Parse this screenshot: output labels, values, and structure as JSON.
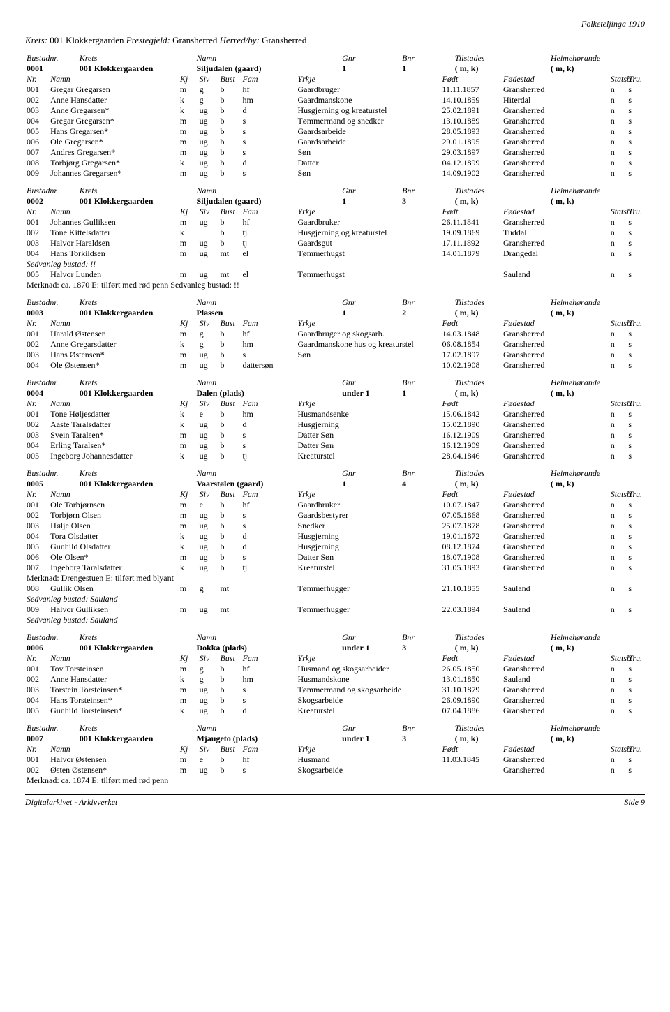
{
  "header_right": "Folketeljinga 1910",
  "krets_line": {
    "krets_label": "Krets:",
    "krets_val": "001 Klokkergaarden",
    "preste_label": "Prestegjeld:",
    "preste_val": "Gransherred",
    "herred_label": "Herred/by:",
    "herred_val": "Gransherred"
  },
  "bustad_headers": [
    "Bustadnr.",
    "Krets",
    "Namn",
    "Gnr",
    "Bnr",
    "Tilstades",
    "Heimehørande"
  ],
  "person_headers": [
    "Nr.",
    "Namn",
    "Kj",
    "Siv",
    "Bust",
    "Fam",
    "Yrkje",
    "Født",
    "Fødestad",
    "Statsb.",
    "Tru."
  ],
  "sections": [
    {
      "bustad": [
        "0001",
        "001 Klokkergaarden",
        "Siljudalen (gaard)",
        "1",
        "1",
        "( m, k)",
        "( m, k)"
      ],
      "persons": [
        [
          "001",
          "Gregar Gregarsen",
          "m",
          "g",
          "b",
          "hf",
          "Gaardbruger",
          "11.11.1857",
          "Gransherred",
          "n",
          "s"
        ],
        [
          "002",
          "Anne Hansdatter",
          "k",
          "g",
          "b",
          "hm",
          "Gaardmanskone",
          "14.10.1859",
          "Hiterdal",
          "n",
          "s"
        ],
        [
          "003",
          "Anne Gregarsen*",
          "k",
          "ug",
          "b",
          "d",
          "Husgjerning og kreaturstel",
          "25.02.1891",
          "Gransherred",
          "n",
          "s"
        ],
        [
          "004",
          "Gregar Gregarsen*",
          "m",
          "ug",
          "b",
          "s",
          "Tømmermand og snedker",
          "13.10.1889",
          "Gransherred",
          "n",
          "s"
        ],
        [
          "005",
          "Hans Gregarsen*",
          "m",
          "ug",
          "b",
          "s",
          "Gaardsarbeide",
          "28.05.1893",
          "Gransherred",
          "n",
          "s"
        ],
        [
          "006",
          "Ole Gregarsen*",
          "m",
          "ug",
          "b",
          "s",
          "Gaardsarbeide",
          "29.01.1895",
          "Gransherred",
          "n",
          "s"
        ],
        [
          "007",
          "Andres Gregarsen*",
          "m",
          "ug",
          "b",
          "s",
          "Søn",
          "29.03.1897",
          "Gransherred",
          "n",
          "s"
        ],
        [
          "008",
          "Torbjørg Gregarsen*",
          "k",
          "ug",
          "b",
          "d",
          "Datter",
          "04.12.1899",
          "Gransherred",
          "n",
          "s"
        ],
        [
          "009",
          "Johannes Gregarsen*",
          "m",
          "ug",
          "b",
          "s",
          "Søn",
          "14.09.1902",
          "Gransherred",
          "n",
          "s"
        ]
      ]
    },
    {
      "bustad": [
        "0002",
        "001 Klokkergaarden",
        "Siljudalen (gaard)",
        "1",
        "3",
        "( m, k)",
        "( m, k)"
      ],
      "persons": [
        [
          "001",
          "Johannes Gulliksen",
          "m",
          "ug",
          "b",
          "hf",
          "Gaardbruker",
          "26.11.1841",
          "Gransherred",
          "n",
          "s"
        ],
        [
          "002",
          "Tone Kittelsdatter",
          "k",
          "",
          "b",
          "tj",
          "Husgjerning og kreaturstel",
          "19.09.1869",
          "Tuddal",
          "n",
          "s"
        ],
        [
          "003",
          "Halvor Haraldsen",
          "m",
          "ug",
          "b",
          "tj",
          "Gaardsgut",
          "17.11.1892",
          "Gransherred",
          "n",
          "s"
        ],
        [
          "004",
          "Hans Torkildsen",
          "m",
          "ug",
          "mt",
          "el",
          "Tømmerhugst",
          "14.01.1879",
          "Drangedal",
          "n",
          "s"
        ]
      ],
      "extras_after": [
        {
          "row": 4,
          "text_italic": "Sedvanleg bustad:  !!"
        },
        {
          "person": [
            "005",
            "Halvor Lunden",
            "m",
            "ug",
            "mt",
            "el",
            "Tømmerhugst",
            "",
            "Sauland",
            "n",
            "s"
          ]
        },
        {
          "merknad": "ca. 1870 E: tilført med rød penn Sedvanleg bustad:  !!",
          "merknad_italic_tail": true
        }
      ]
    },
    {
      "bustad": [
        "0003",
        "001 Klokkergaarden",
        "Plassen",
        "1",
        "2",
        "( m, k)",
        "( m, k)"
      ],
      "persons": [
        [
          "001",
          "Harald Østensen",
          "m",
          "g",
          "b",
          "hf",
          "Gaardbruger og skogsarb.",
          "14.03.1848",
          "Gransherred",
          "n",
          "s"
        ],
        [
          "002",
          "Anne Gregarsdatter",
          "k",
          "g",
          "b",
          "hm",
          "Gaardmanskone hus og kreaturstel",
          "06.08.1854",
          "Gransherred",
          "n",
          "s"
        ],
        [
          "003",
          "Hans Østensen*",
          "m",
          "ug",
          "b",
          "s",
          "Søn",
          "17.02.1897",
          "Gransherred",
          "n",
          "s"
        ],
        [
          "004",
          "Ole Østensen*",
          "m",
          "ug",
          "b",
          "dattersøn",
          "",
          "10.02.1908",
          "Gransherred",
          "n",
          "s"
        ]
      ]
    },
    {
      "bustad": [
        "0004",
        "001 Klokkergaarden",
        "Dalen (plads)",
        "under 1",
        "1",
        "( m, k)",
        "( m, k)"
      ],
      "persons": [
        [
          "001",
          "Tone Høljesdatter",
          "k",
          "e",
          "b",
          "hm",
          "Husmandsenke",
          "15.06.1842",
          "Gransherred",
          "n",
          "s"
        ],
        [
          "002",
          "Aaste Taralsdatter",
          "k",
          "ug",
          "b",
          "d",
          "Husgjerning",
          "15.02.1890",
          "Gransherred",
          "n",
          "s"
        ],
        [
          "003",
          "Svein Taralsen*",
          "m",
          "ug",
          "b",
          "s",
          "Datter Søn",
          "16.12.1909",
          "Gransherred",
          "n",
          "s"
        ],
        [
          "004",
          "Erling Taralsen*",
          "m",
          "ug",
          "b",
          "s",
          "Datter Søn",
          "16.12.1909",
          "Gransherred",
          "n",
          "s"
        ],
        [
          "005",
          "Ingeborg Johannesdatter",
          "k",
          "ug",
          "b",
          "tj",
          "Kreaturstel",
          "28.04.1846",
          "Gransherred",
          "n",
          "s"
        ]
      ]
    },
    {
      "bustad": [
        "0005",
        "001 Klokkergaarden",
        "Vaarstølen (gaard)",
        "1",
        "4",
        "( m, k)",
        "( m, k)"
      ],
      "persons": [
        [
          "001",
          "Ole Torbjørnsen",
          "m",
          "e",
          "b",
          "hf",
          "Gaardbruker",
          "10.07.1847",
          "Gransherred",
          "n",
          "s"
        ],
        [
          "002",
          "Torbjørn Olsen",
          "m",
          "ug",
          "b",
          "s",
          "Gaardsbestyrer",
          "07.05.1868",
          "Gransherred",
          "n",
          "s"
        ],
        [
          "003",
          "Hølje Olsen",
          "m",
          "ug",
          "b",
          "s",
          "Snedker",
          "25.07.1878",
          "Gransherred",
          "n",
          "s"
        ],
        [
          "004",
          "Tora Olsdatter",
          "k",
          "ug",
          "b",
          "d",
          "Husgjerning",
          "19.01.1872",
          "Gransherred",
          "n",
          "s"
        ],
        [
          "005",
          "Gunhild Olsdatter",
          "k",
          "ug",
          "b",
          "d",
          "Husgjerning",
          "08.12.1874",
          "Gransherred",
          "n",
          "s"
        ],
        [
          "006",
          "Ole Olsen*",
          "m",
          "ug",
          "b",
          "s",
          "Datter Søn",
          "18.07.1908",
          "Gransherred",
          "n",
          "s"
        ],
        [
          "007",
          "Ingeborg Taralsdatter",
          "k",
          "ug",
          "b",
          "tj",
          "Kreaturstel",
          "31.05.1893",
          "Gransherred",
          "n",
          "s"
        ]
      ],
      "extras_after": [
        {
          "merknad": "Drengestuen E: tilført med blyant"
        },
        {
          "person": [
            "008",
            "Gullik Olsen",
            "m",
            "g",
            "mt",
            "",
            "Tømmerhugger",
            "21.10.1855",
            "Sauland",
            "n",
            "s"
          ]
        },
        {
          "text_italic": "Sedvanleg bustad:  Sauland"
        },
        {
          "person": [
            "009",
            "Halvor Gulliksen",
            "m",
            "ug",
            "mt",
            "",
            "Tømmerhugger",
            "22.03.1894",
            "Sauland",
            "n",
            "s"
          ]
        },
        {
          "text_italic": "Sedvanleg bustad:  Sauland"
        }
      ]
    },
    {
      "bustad": [
        "0006",
        "001 Klokkergaarden",
        "Dokka (plads)",
        "under 1",
        "3",
        "( m, k)",
        "( m, k)"
      ],
      "persons": [
        [
          "001",
          "Tov Torsteinsen",
          "m",
          "g",
          "b",
          "hf",
          "Husmand og skogsarbeider",
          "26.05.1850",
          "Gransherred",
          "n",
          "s"
        ],
        [
          "002",
          "Anne Hansdatter",
          "k",
          "g",
          "b",
          "hm",
          "Husmandskone",
          "13.01.1850",
          "Sauland",
          "n",
          "s"
        ],
        [
          "003",
          "Torstein Torsteinsen*",
          "m",
          "ug",
          "b",
          "s",
          "Tømmermand og skogsarbeide",
          "31.10.1879",
          "Gransherred",
          "n",
          "s"
        ],
        [
          "004",
          "Hans Torsteinsen*",
          "m",
          "ug",
          "b",
          "s",
          "Skogsarbeide",
          "26.09.1890",
          "Gransherred",
          "n",
          "s"
        ],
        [
          "005",
          "Gunhild Torsteinsen*",
          "k",
          "ug",
          "b",
          "d",
          "Kreaturstel",
          "07.04.1886",
          "Gransherred",
          "n",
          "s"
        ]
      ]
    },
    {
      "bustad": [
        "0007",
        "001 Klokkergaarden",
        "Mjaugeto (plads)",
        "under 1",
        "3",
        "( m, k)",
        "( m, k)"
      ],
      "persons": [
        [
          "001",
          "Halvor Østensen",
          "m",
          "e",
          "b",
          "hf",
          "Husmand",
          "11.03.1845",
          "Gransherred",
          "n",
          "s"
        ],
        [
          "002",
          "Østen Østensen*",
          "m",
          "ug",
          "b",
          "s",
          "Skogsarbeide",
          "",
          "Gransherred",
          "n",
          "s"
        ]
      ],
      "extras_after": [
        {
          "merknad": "ca. 1874 E: tilført med rød penn"
        }
      ]
    }
  ],
  "footer_left": "Digitalarkivet - Arkivverket",
  "footer_right": "Side 9"
}
